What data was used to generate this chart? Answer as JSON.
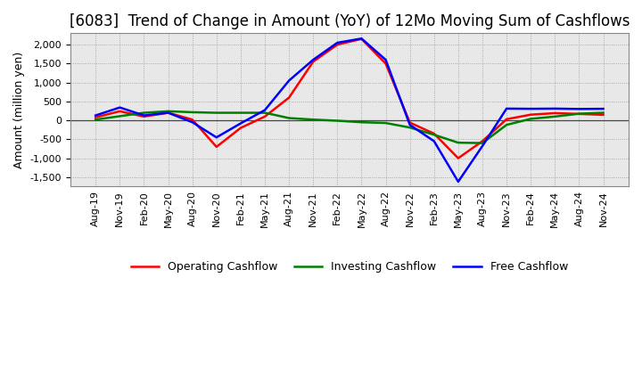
{
  "title": "[6083]  Trend of Change in Amount (YoY) of 12Mo Moving Sum of Cashflows",
  "ylabel": "Amount (million yen)",
  "x_labels": [
    "Aug-19",
    "Nov-19",
    "Feb-20",
    "May-20",
    "Aug-20",
    "Nov-20",
    "Feb-21",
    "May-21",
    "Aug-21",
    "Nov-21",
    "Feb-22",
    "May-22",
    "Aug-22",
    "Nov-22",
    "Feb-23",
    "May-23",
    "Aug-23",
    "Nov-23",
    "Feb-24",
    "May-24",
    "Aug-24",
    "Nov-24"
  ],
  "operating": [
    80,
    240,
    100,
    200,
    20,
    -700,
    -200,
    100,
    600,
    1550,
    2000,
    2150,
    1500,
    -60,
    -350,
    -1000,
    -550,
    30,
    150,
    190,
    170,
    145
  ],
  "investing": [
    20,
    110,
    200,
    240,
    215,
    200,
    200,
    200,
    60,
    20,
    -10,
    -50,
    -70,
    -190,
    -380,
    -590,
    -600,
    -120,
    40,
    100,
    175,
    200
  ],
  "free": [
    130,
    340,
    130,
    200,
    -50,
    -450,
    -80,
    270,
    1050,
    1600,
    2050,
    2160,
    1600,
    -120,
    -550,
    -1620,
    -680,
    310,
    305,
    310,
    300,
    305
  ],
  "ylim": [
    -1750,
    2300
  ],
  "yticks": [
    -1500,
    -1000,
    -500,
    0,
    500,
    1000,
    1500,
    2000
  ],
  "operating_color": "#ff0000",
  "investing_color": "#008000",
  "free_color": "#0000ff",
  "line_width": 1.8,
  "bg_color": "#ffffff",
  "plot_bg_color": "#e8e8e8",
  "grid_color": "#999999",
  "title_fontsize": 12,
  "label_fontsize": 9,
  "tick_fontsize": 8
}
